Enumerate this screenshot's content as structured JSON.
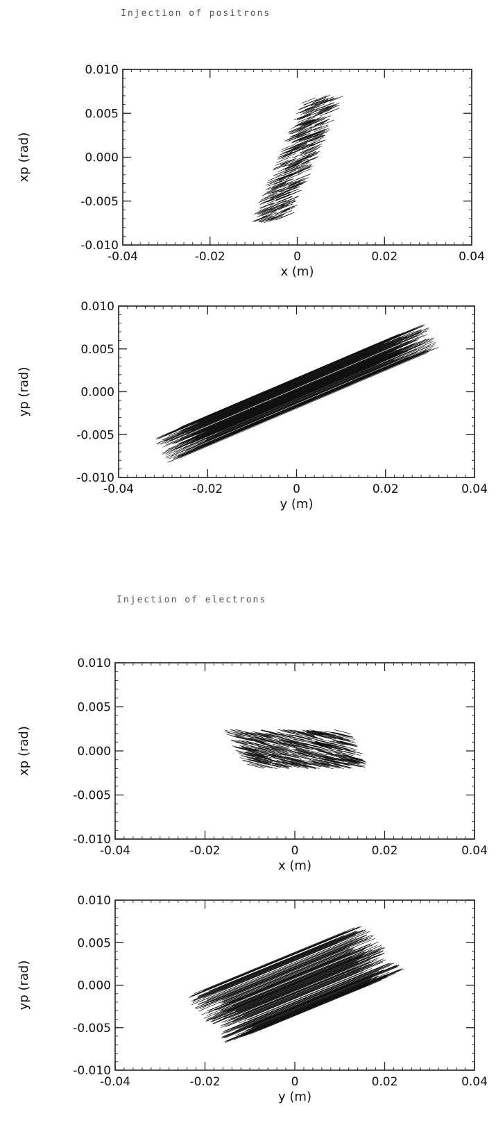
{
  "sections": [
    {
      "title": "Injection of positrons"
    },
    {
      "title": "Injection of electrons"
    }
  ],
  "chart_data": [
    {
      "type": "scatter",
      "section": 0,
      "xlabel": "x (m)",
      "ylabel": "xp (rad)",
      "xlim": [
        -0.04,
        0.04
      ],
      "ylim": [
        -0.01,
        0.01
      ],
      "xticks": [
        "-0.04",
        "-0.02",
        "0",
        "0.02",
        "0.04"
      ],
      "yticks": [
        "0.010",
        "0.005",
        "0.000",
        "-0.005",
        "-0.010"
      ],
      "distribution": {
        "shape": "tilted ellipse",
        "center": [
          0.0,
          0.0
        ],
        "x_extent": [
          -0.006,
          0.006
        ],
        "y_extent": [
          -0.0072,
          0.0068
        ]
      }
    },
    {
      "type": "scatter",
      "section": 0,
      "xlabel": "y (m)",
      "ylabel": "yp (rad)",
      "xlim": [
        -0.04,
        0.04
      ],
      "ylim": [
        -0.01,
        0.01
      ],
      "xticks": [
        "-0.04",
        "-0.02",
        "0",
        "0.02",
        "0.04"
      ],
      "yticks": [
        "0.010",
        "0.005",
        "0.000",
        "-0.005",
        "-0.010"
      ],
      "distribution": {
        "shape": "elongated tilted ellipse",
        "center": [
          0.0,
          0.0
        ],
        "x_extent": [
          -0.031,
          0.031
        ],
        "y_extent": [
          -0.007,
          0.0067
        ]
      }
    },
    {
      "type": "scatter",
      "section": 1,
      "xlabel": "x (m)",
      "ylabel": "xp (rad)",
      "xlim": [
        -0.04,
        0.04
      ],
      "ylim": [
        -0.01,
        0.01
      ],
      "xticks": [
        "-0.04",
        "-0.02",
        "0",
        "0.02",
        "0.04"
      ],
      "yticks": [
        "0.010",
        "0.005",
        "0.000",
        "-0.005",
        "-0.010"
      ],
      "distribution": {
        "shape": "flat parallelogram",
        "center": [
          0.0,
          0.0
        ],
        "x_extent": [
          -0.014,
          0.015
        ],
        "y_extent": [
          -0.0018,
          0.0022
        ]
      }
    },
    {
      "type": "scatter",
      "section": 1,
      "xlabel": "y (m)",
      "ylabel": "yp (rad)",
      "xlim": [
        -0.04,
        0.04
      ],
      "ylim": [
        -0.01,
        0.01
      ],
      "xticks": [
        "-0.04",
        "-0.02",
        "0",
        "0.02",
        "0.04"
      ],
      "yticks": [
        "0.010",
        "0.005",
        "0.000",
        "-0.005",
        "-0.010"
      ],
      "distribution": {
        "shape": "tilted parallelogram",
        "center": [
          0.0,
          0.0
        ],
        "x_extent": [
          -0.02,
          0.02
        ],
        "y_extent": [
          -0.0042,
          0.0045
        ]
      }
    }
  ]
}
